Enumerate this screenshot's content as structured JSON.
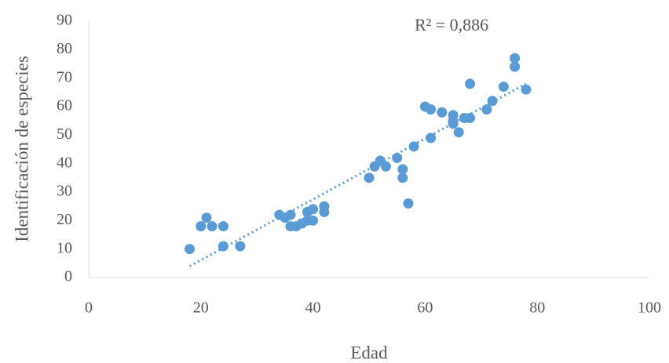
{
  "chart_data": {
    "type": "scatter",
    "x_label": "Edad",
    "y_label": "Identificación de especies",
    "annotation": "R² = 0,886",
    "color": "#5b9bd5",
    "x": [
      18,
      20,
      21,
      22,
      24,
      24,
      27,
      34,
      35,
      36,
      36,
      37,
      38,
      39,
      39,
      40,
      40,
      42,
      42,
      50,
      51,
      52,
      53,
      55,
      56,
      56,
      57,
      58,
      60,
      61,
      61,
      63,
      65,
      65,
      65,
      66,
      67,
      68,
      68,
      71,
      72,
      74,
      76,
      76,
      78
    ],
    "values": [
      10,
      18,
      21,
      18,
      18,
      11,
      11,
      22,
      21,
      22,
      18,
      18,
      19,
      20,
      23,
      24,
      20,
      25,
      23,
      35,
      39,
      41,
      39,
      42,
      38,
      35,
      26,
      46,
      60,
      59,
      49,
      58,
      57,
      55,
      54,
      51,
      56,
      56,
      68,
      59,
      62,
      67,
      77,
      74,
      66
    ],
    "trendline": {
      "x": [
        18,
        78
      ],
      "y": [
        4,
        68
      ]
    },
    "xlim": [
      0,
      100
    ],
    "xticks": [
      0,
      20,
      40,
      60,
      80,
      100
    ],
    "ylim": [
      0,
      90
    ],
    "yticks": [
      0,
      10,
      20,
      30,
      40,
      50,
      60,
      70,
      80,
      90
    ]
  }
}
